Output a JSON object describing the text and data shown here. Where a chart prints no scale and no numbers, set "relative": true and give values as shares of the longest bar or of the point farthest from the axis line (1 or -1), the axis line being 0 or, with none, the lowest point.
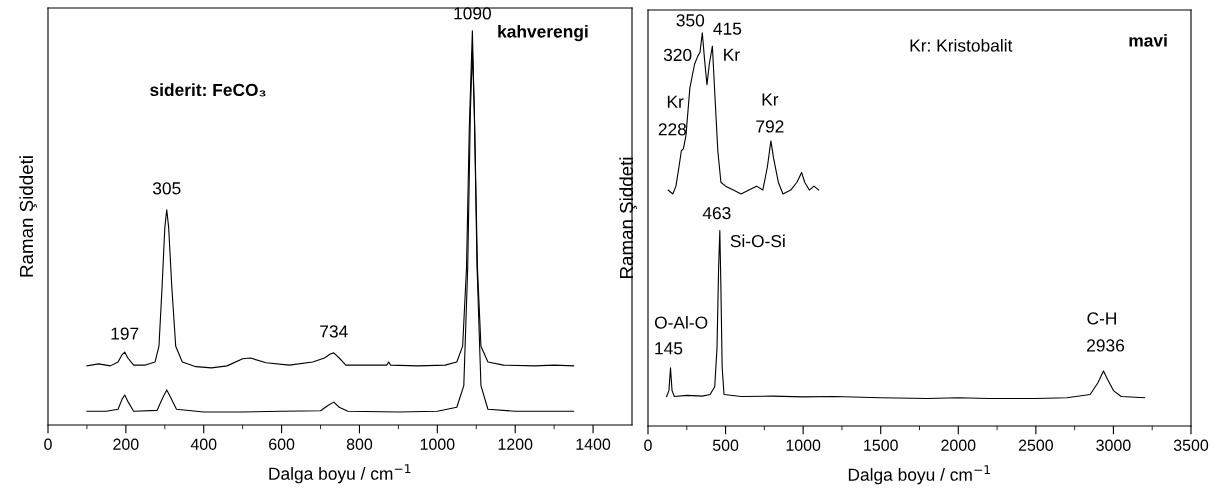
{
  "chart_data": [
    {
      "type": "line",
      "relative": true,
      "xlabel": "Dalga boyu / cm$^{−1}$",
      "ylabel": "Raman Şiddeti",
      "xlim": [
        0,
        1500
      ],
      "xticks": [
        0,
        200,
        400,
        600,
        800,
        1000,
        1200,
        1400
      ],
      "grid": false,
      "legend": false,
      "series": [
        {
          "color": "#000000",
          "x": [
            100,
            130,
            160,
            180,
            190,
            197,
            205,
            220,
            250,
            275,
            285,
            293,
            300,
            305,
            310,
            318,
            328,
            345,
            380,
            420,
            460,
            500,
            520,
            560,
            620,
            680,
            710,
            725,
            734,
            748,
            765,
            820,
            870,
            875,
            880,
            950,
            1020,
            1050,
            1065,
            1075,
            1082,
            1090,
            1096,
            1103,
            1112,
            1130,
            1170,
            1250,
            1300,
            1350
          ],
          "values": [
            0.15,
            0.155,
            0.15,
            0.16,
            0.178,
            0.185,
            0.17,
            0.152,
            0.152,
            0.16,
            0.2,
            0.35,
            0.5,
            0.546,
            0.5,
            0.35,
            0.2,
            0.16,
            0.148,
            0.145,
            0.15,
            0.168,
            0.17,
            0.158,
            0.152,
            0.16,
            0.17,
            0.18,
            0.183,
            0.17,
            0.152,
            0.152,
            0.152,
            0.16,
            0.152,
            0.15,
            0.152,
            0.16,
            0.2,
            0.4,
            0.75,
            1.0,
            0.75,
            0.4,
            0.2,
            0.16,
            0.152,
            0.15,
            0.152,
            0.15
          ]
        },
        {
          "color": "#000000",
          "x": [
            100,
            150,
            180,
            190,
            197,
            205,
            220,
            280,
            295,
            305,
            315,
            330,
            400,
            500,
            600,
            700,
            720,
            734,
            748,
            770,
            900,
            1000,
            1050,
            1068,
            1078,
            1085,
            1090,
            1095,
            1102,
            1112,
            1130,
            1200,
            1350
          ],
          "values": [
            0.035,
            0.035,
            0.04,
            0.065,
            0.076,
            0.06,
            0.035,
            0.037,
            0.07,
            0.089,
            0.07,
            0.04,
            0.033,
            0.033,
            0.035,
            0.036,
            0.05,
            0.058,
            0.045,
            0.035,
            0.033,
            0.035,
            0.045,
            0.1,
            0.4,
            0.8,
            0.95,
            0.8,
            0.4,
            0.1,
            0.04,
            0.035,
            0.035
          ]
        }
      ],
      "annotations": [
        {
          "text": "197",
          "x": 197,
          "y": 0.185
        },
        {
          "text": "305",
          "x": 305,
          "y": 0.546
        },
        {
          "text": "734",
          "x": 734,
          "y": 0.183
        },
        {
          "text": "1090",
          "x": 1090,
          "y": 1.0
        },
        "siderit: FeCO₃",
        "kahverengi"
      ]
    },
    {
      "type": "line",
      "relative": true,
      "xlabel": "Dalga boyu / cm$^{−1}$",
      "ylabel": "Raman Şiddeti",
      "xlim": [
        0,
        3500
      ],
      "xticks": [
        0,
        500,
        1000,
        1500,
        2000,
        2500,
        3000,
        3500
      ],
      "grid": false,
      "legend": false,
      "series": [
        {
          "color": "#000000",
          "x": [
            130,
            160,
            180,
            200,
            215,
            228,
            245,
            270,
            300,
            320,
            335,
            350,
            365,
            380,
            395,
            415,
            430,
            450,
            470,
            500,
            550,
            600,
            650,
            700,
            740,
            770,
            792,
            810,
            840,
            870,
            920,
            960,
            990,
            1010,
            1040,
            1070,
            1100
          ],
          "values": [
            0.6,
            0.59,
            0.61,
            0.66,
            0.7,
            0.705,
            0.74,
            0.86,
            0.92,
            0.94,
            0.95,
            1.0,
            0.93,
            0.868,
            0.92,
            0.966,
            0.85,
            0.7,
            0.62,
            0.61,
            0.6,
            0.59,
            0.6,
            0.61,
            0.6,
            0.66,
            0.725,
            0.68,
            0.62,
            0.59,
            0.6,
            0.62,
            0.645,
            0.62,
            0.6,
            0.61,
            0.6
          ]
        },
        {
          "color": "#000000",
          "x": [
            120,
            135,
            145,
            155,
            170,
            250,
            350,
            400,
            430,
            445,
            455,
            463,
            470,
            478,
            490,
            600,
            800,
            1000,
            1200,
            1500,
            1800,
            2000,
            2200,
            2500,
            2700,
            2850,
            2900,
            2936,
            2960,
            3000,
            3050,
            3200
          ],
          "values": [
            0.075,
            0.09,
            0.148,
            0.09,
            0.075,
            0.078,
            0.076,
            0.08,
            0.1,
            0.2,
            0.4,
            0.497,
            0.35,
            0.15,
            0.08,
            0.075,
            0.076,
            0.074,
            0.075,
            0.072,
            0.07,
            0.072,
            0.07,
            0.07,
            0.072,
            0.08,
            0.11,
            0.14,
            0.12,
            0.09,
            0.075,
            0.072
          ]
        }
      ],
      "annotations": [
        {
          "text": "350",
          "x": 350,
          "y": 1.0
        },
        {
          "text": "320",
          "x": 320,
          "y": 0.94
        },
        {
          "text": "415",
          "x": 415,
          "y": 0.966
        },
        {
          "text": "Kr",
          "x": 415,
          "y": 0.966
        },
        "Kr",
        {
          "text": "228",
          "x": 228,
          "y": 0.705
        },
        {
          "text": "Kr",
          "x": 792,
          "y": 0.725
        },
        {
          "text": "792",
          "x": 792,
          "y": 0.725
        },
        {
          "text": "463",
          "x": 463,
          "y": 0.497
        },
        {
          "text": "Si-O-Si",
          "x": 463,
          "y": 0.497
        },
        "O-Al-O",
        {
          "text": "145",
          "x": 145,
          "y": 0.148
        },
        "C-H",
        {
          "text": "2936",
          "x": 2936,
          "y": 0.14
        },
        "Kr: Kristobalit",
        "mavi"
      ]
    }
  ]
}
